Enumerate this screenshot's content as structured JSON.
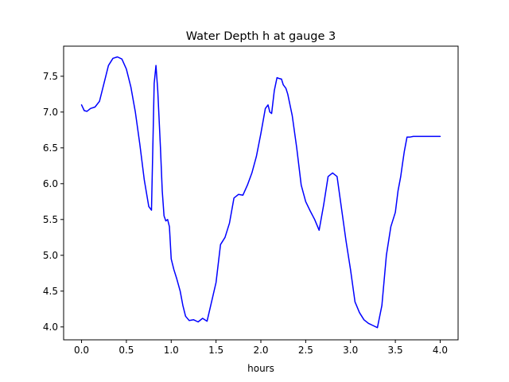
{
  "chart_data": {
    "type": "line",
    "title": "Water Depth h at gauge 3",
    "xlabel": "hours",
    "ylabel": "",
    "xlim": [
      -0.2,
      4.2
    ],
    "ylim": [
      3.82,
      7.92
    ],
    "xticks": [
      0.0,
      0.5,
      1.0,
      1.5,
      2.0,
      2.5,
      3.0,
      3.5,
      4.0
    ],
    "xtick_labels": [
      "0.0",
      "0.5",
      "1.0",
      "1.5",
      "2.0",
      "2.5",
      "3.0",
      "3.5",
      "4.0"
    ],
    "yticks": [
      4.0,
      4.5,
      5.0,
      5.5,
      6.0,
      6.5,
      7.0,
      7.5
    ],
    "ytick_labels": [
      "4.0",
      "4.5",
      "5.0",
      "5.5",
      "6.0",
      "6.5",
      "7.0",
      "7.5"
    ],
    "grid": false,
    "series": [
      {
        "color": "#0000ff",
        "x": [
          0.0,
          0.03,
          0.06,
          0.1,
          0.15,
          0.2,
          0.25,
          0.3,
          0.35,
          0.4,
          0.45,
          0.5,
          0.55,
          0.6,
          0.65,
          0.7,
          0.75,
          0.78,
          0.8,
          0.81,
          0.83,
          0.85,
          0.88,
          0.9,
          0.92,
          0.94,
          0.96,
          0.98,
          1.0,
          1.03,
          1.06,
          1.1,
          1.13,
          1.16,
          1.2,
          1.25,
          1.3,
          1.35,
          1.4,
          1.45,
          1.5,
          1.55,
          1.6,
          1.65,
          1.7,
          1.75,
          1.8,
          1.85,
          1.9,
          1.95,
          2.0,
          2.05,
          2.08,
          2.1,
          2.12,
          2.15,
          2.18,
          2.2,
          2.23,
          2.25,
          2.28,
          2.3,
          2.35,
          2.4,
          2.45,
          2.5,
          2.55,
          2.6,
          2.65,
          2.7,
          2.75,
          2.8,
          2.85,
          2.9,
          2.95,
          3.0,
          3.05,
          3.1,
          3.15,
          3.2,
          3.25,
          3.3,
          3.35,
          3.4,
          3.45,
          3.5,
          3.53,
          3.56,
          3.58,
          3.6,
          3.63,
          3.66,
          3.7,
          3.75,
          3.8,
          3.85,
          3.9,
          3.95,
          4.0
        ],
        "y": [
          7.1,
          7.02,
          7.01,
          7.05,
          7.07,
          7.15,
          7.4,
          7.65,
          7.75,
          7.77,
          7.74,
          7.6,
          7.35,
          7.0,
          6.55,
          6.05,
          5.68,
          5.63,
          6.8,
          7.4,
          7.65,
          7.3,
          6.5,
          5.9,
          5.55,
          5.48,
          5.5,
          5.4,
          4.95,
          4.8,
          4.68,
          4.5,
          4.3,
          4.15,
          4.09,
          4.1,
          4.07,
          4.12,
          4.08,
          4.35,
          4.62,
          5.15,
          5.25,
          5.45,
          5.8,
          5.85,
          5.84,
          5.98,
          6.15,
          6.38,
          6.7,
          7.05,
          7.1,
          7.0,
          6.98,
          7.3,
          7.48,
          7.47,
          7.46,
          7.38,
          7.33,
          7.25,
          6.95,
          6.5,
          5.98,
          5.75,
          5.62,
          5.5,
          5.35,
          5.7,
          6.1,
          6.15,
          6.1,
          5.65,
          5.2,
          4.8,
          4.35,
          4.2,
          4.1,
          4.05,
          4.02,
          3.99,
          4.3,
          5.0,
          5.4,
          5.6,
          5.9,
          6.1,
          6.28,
          6.45,
          6.65,
          6.65,
          6.66,
          6.66,
          6.66,
          6.66,
          6.66,
          6.66,
          6.66
        ]
      }
    ]
  }
}
